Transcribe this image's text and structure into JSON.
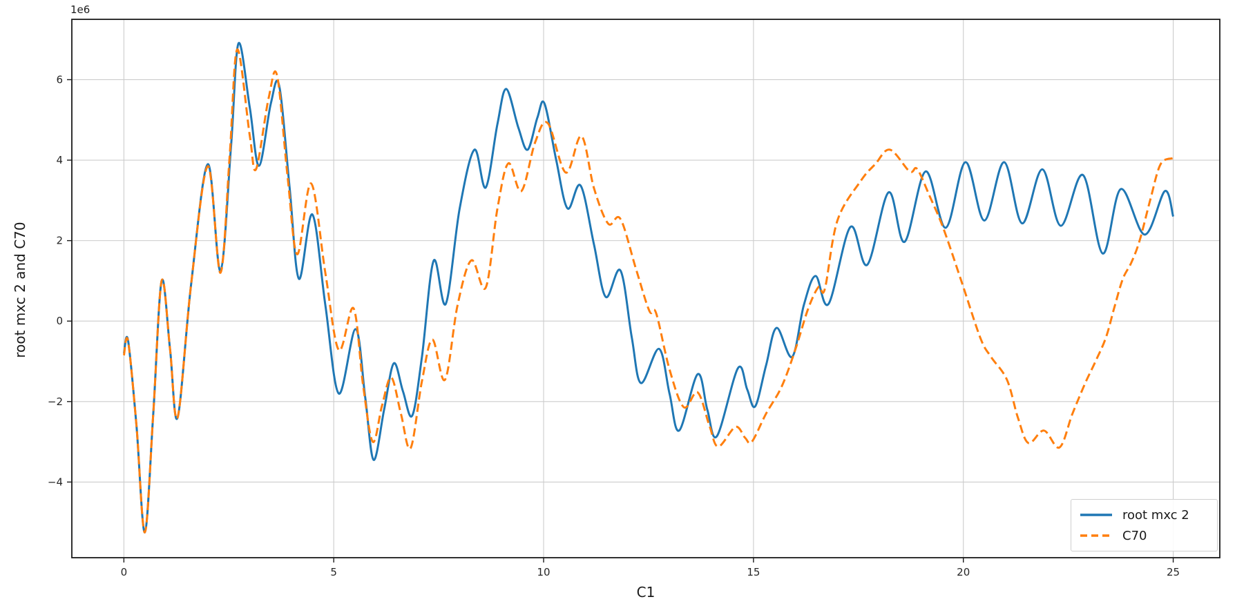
{
  "figure": {
    "background": "#ffffff",
    "offset_text": "1e6",
    "xlabel": "C1",
    "ylabel": "root mxc 2 and C70"
  },
  "axes": {
    "x_tick_labels": [
      "0",
      "5",
      "10",
      "15",
      "20",
      "25"
    ],
    "y_tick_labels": [
      "6",
      "4",
      "2",
      "0",
      "−2",
      "−4"
    ],
    "grid": true,
    "grid_color": "#cccccc",
    "spine_color": "#1a1a1a",
    "tick_label_color": "#262626"
  },
  "legend": {
    "position": "lower right",
    "border_color": "#cfcfcf",
    "entries": [
      {
        "label": "root mxc 2",
        "color": "#1f77b4",
        "style": "solid"
      },
      {
        "label": "C70",
        "color": "#ff7f0e",
        "style": "dashed"
      }
    ]
  },
  "chart_data": {
    "type": "line",
    "title": "",
    "xlabel": "C1",
    "ylabel": "root mxc 2 and C70",
    "y_unit_scale": "1e6",
    "xlim": [
      -1.24,
      26.11
    ],
    "ylim_1e6": [
      -5.88,
      7.5
    ],
    "x_ticks": [
      0,
      5,
      10,
      15,
      20,
      25
    ],
    "y_ticks_1e6": [
      6,
      4,
      2,
      0,
      -2,
      -4
    ],
    "grid": true,
    "legend_position": "lower right",
    "series": [
      {
        "name": "root mxc 2",
        "color": "#1f77b4",
        "style": "solid",
        "line_width": 3,
        "points_1e6": [
          [
            0.0,
            -0.8
          ],
          [
            0.1,
            -0.48
          ],
          [
            0.3,
            -2.6
          ],
          [
            0.5,
            -5.25
          ],
          [
            0.7,
            -2.3
          ],
          [
            0.9,
            1.0
          ],
          [
            1.1,
            -0.7
          ],
          [
            1.28,
            -2.4
          ],
          [
            1.6,
            0.9
          ],
          [
            2.0,
            3.9
          ],
          [
            2.3,
            1.25
          ],
          [
            2.55,
            4.3
          ],
          [
            2.73,
            6.9
          ],
          [
            3.0,
            5.3
          ],
          [
            3.22,
            3.86
          ],
          [
            3.5,
            5.4
          ],
          [
            3.7,
            5.85
          ],
          [
            3.95,
            3.3
          ],
          [
            4.17,
            1.05
          ],
          [
            4.49,
            2.65
          ],
          [
            4.8,
            0.4
          ],
          [
            5.12,
            -1.8
          ],
          [
            5.52,
            -0.2
          ],
          [
            5.75,
            -1.9
          ],
          [
            5.95,
            -3.45
          ],
          [
            6.2,
            -2.2
          ],
          [
            6.43,
            -1.05
          ],
          [
            6.65,
            -1.75
          ],
          [
            6.87,
            -2.35
          ],
          [
            7.1,
            -0.9
          ],
          [
            7.38,
            1.5
          ],
          [
            7.67,
            0.43
          ],
          [
            8.0,
            2.8
          ],
          [
            8.35,
            4.26
          ],
          [
            8.62,
            3.32
          ],
          [
            8.9,
            4.9
          ],
          [
            9.11,
            5.77
          ],
          [
            9.4,
            4.8
          ],
          [
            9.62,
            4.26
          ],
          [
            9.85,
            5.05
          ],
          [
            10.02,
            5.41
          ],
          [
            10.3,
            4.0
          ],
          [
            10.57,
            2.8
          ],
          [
            10.88,
            3.37
          ],
          [
            11.2,
            1.9
          ],
          [
            11.48,
            0.6
          ],
          [
            11.83,
            1.26
          ],
          [
            12.1,
            -0.4
          ],
          [
            12.32,
            -1.54
          ],
          [
            12.75,
            -0.69
          ],
          [
            13.0,
            -1.8
          ],
          [
            13.23,
            -2.72
          ],
          [
            13.67,
            -1.32
          ],
          [
            13.9,
            -2.2
          ],
          [
            14.13,
            -2.86
          ],
          [
            14.63,
            -1.17
          ],
          [
            14.85,
            -1.7
          ],
          [
            15.04,
            -2.12
          ],
          [
            15.3,
            -1.1
          ],
          [
            15.55,
            -0.17
          ],
          [
            15.92,
            -0.89
          ],
          [
            16.2,
            0.4
          ],
          [
            16.48,
            1.12
          ],
          [
            16.79,
            0.43
          ],
          [
            17.31,
            2.34
          ],
          [
            17.71,
            1.4
          ],
          [
            18.22,
            3.2
          ],
          [
            18.6,
            1.97
          ],
          [
            19.1,
            3.72
          ],
          [
            19.58,
            2.32
          ],
          [
            20.05,
            3.95
          ],
          [
            20.5,
            2.5
          ],
          [
            20.97,
            3.95
          ],
          [
            21.4,
            2.43
          ],
          [
            21.88,
            3.77
          ],
          [
            22.32,
            2.37
          ],
          [
            22.85,
            3.63
          ],
          [
            23.32,
            1.68
          ],
          [
            23.75,
            3.28
          ],
          [
            24.32,
            2.15
          ],
          [
            24.8,
            3.23
          ],
          [
            25.0,
            2.6
          ]
        ]
      },
      {
        "name": "C70",
        "color": "#ff7f0e",
        "style": "dashed",
        "line_width": 3,
        "points_1e6": [
          [
            0.0,
            -0.85
          ],
          [
            0.1,
            -0.5
          ],
          [
            0.3,
            -2.6
          ],
          [
            0.5,
            -5.25
          ],
          [
            0.7,
            -2.3
          ],
          [
            0.9,
            1.0
          ],
          [
            1.1,
            -0.7
          ],
          [
            1.28,
            -2.4
          ],
          [
            1.6,
            0.9
          ],
          [
            2.0,
            3.85
          ],
          [
            2.3,
            1.2
          ],
          [
            2.52,
            4.1
          ],
          [
            2.7,
            6.75
          ],
          [
            3.0,
            4.6
          ],
          [
            3.15,
            3.78
          ],
          [
            3.45,
            5.55
          ],
          [
            3.65,
            6.1
          ],
          [
            3.9,
            3.6
          ],
          [
            4.13,
            1.66
          ],
          [
            4.46,
            3.42
          ],
          [
            4.8,
            1.2
          ],
          [
            5.12,
            -0.72
          ],
          [
            5.47,
            0.32
          ],
          [
            5.7,
            -1.6
          ],
          [
            5.93,
            -3.0
          ],
          [
            6.15,
            -2.1
          ],
          [
            6.37,
            -1.4
          ],
          [
            6.6,
            -2.3
          ],
          [
            6.83,
            -3.16
          ],
          [
            7.1,
            -1.5
          ],
          [
            7.35,
            -0.46
          ],
          [
            7.65,
            -1.46
          ],
          [
            7.95,
            0.4
          ],
          [
            8.28,
            1.51
          ],
          [
            8.62,
            0.83
          ],
          [
            8.9,
            2.8
          ],
          [
            9.16,
            3.92
          ],
          [
            9.47,
            3.23
          ],
          [
            9.8,
            4.45
          ],
          [
            10.1,
            4.92
          ],
          [
            10.53,
            3.69
          ],
          [
            10.9,
            4.6
          ],
          [
            11.2,
            3.3
          ],
          [
            11.54,
            2.42
          ],
          [
            11.83,
            2.54
          ],
          [
            12.2,
            1.3
          ],
          [
            12.52,
            0.25
          ],
          [
            12.68,
            0.2
          ],
          [
            13.0,
            -1.2
          ],
          [
            13.34,
            -2.14
          ],
          [
            13.67,
            -1.77
          ],
          [
            13.95,
            -2.6
          ],
          [
            14.16,
            -3.12
          ],
          [
            14.57,
            -2.63
          ],
          [
            14.8,
            -2.9
          ],
          [
            14.96,
            -3.0
          ],
          [
            15.3,
            -2.3
          ],
          [
            15.67,
            -1.63
          ],
          [
            16.0,
            -0.7
          ],
          [
            16.3,
            0.3
          ],
          [
            16.55,
            0.85
          ],
          [
            16.7,
            0.8
          ],
          [
            17.0,
            2.5
          ],
          [
            17.56,
            3.49
          ],
          [
            17.9,
            3.9
          ],
          [
            18.25,
            4.26
          ],
          [
            18.72,
            3.72
          ],
          [
            18.9,
            3.78
          ],
          [
            19.2,
            3.1
          ],
          [
            19.53,
            2.29
          ],
          [
            19.97,
            0.94
          ],
          [
            20.41,
            -0.43
          ],
          [
            20.66,
            -0.89
          ],
          [
            21.04,
            -1.46
          ],
          [
            21.3,
            -2.4
          ],
          [
            21.55,
            -3.03
          ],
          [
            21.92,
            -2.72
          ],
          [
            22.29,
            -3.14
          ],
          [
            22.6,
            -2.3
          ],
          [
            22.9,
            -1.55
          ],
          [
            23.15,
            -1.0
          ],
          [
            23.4,
            -0.4
          ],
          [
            23.6,
            0.35
          ],
          [
            23.8,
            1.05
          ],
          [
            24.0,
            1.45
          ],
          [
            24.2,
            2.0
          ],
          [
            24.45,
            3.0
          ],
          [
            24.7,
            3.9
          ],
          [
            25.0,
            4.05
          ]
        ]
      }
    ]
  }
}
